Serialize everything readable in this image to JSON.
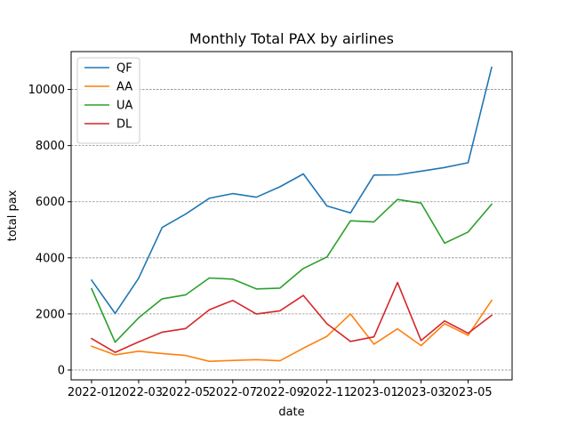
{
  "chart_data": {
    "type": "line",
    "title": "Monthly Total PAX by airlines",
    "xlabel": "date",
    "ylabel": "total pax",
    "x": [
      "2022-01",
      "2022-02",
      "2022-03",
      "2022-04",
      "2022-05",
      "2022-06",
      "2022-07",
      "2022-08",
      "2022-09",
      "2022-10",
      "2022-11",
      "2022-12",
      "2023-01",
      "2023-02",
      "2023-03",
      "2023-04",
      "2023-05",
      "2023-06"
    ],
    "x_ticks": [
      "2022-01",
      "2022-03",
      "2022-05",
      "2022-07",
      "2022-09",
      "2022-11",
      "2023-01",
      "2023-03",
      "2023-05"
    ],
    "y_ticks": [
      0,
      2000,
      4000,
      6000,
      8000,
      10000
    ],
    "ylim": [
      -350,
      11350
    ],
    "grid": "horizontal dashed",
    "legend_position": "top-left",
    "series": [
      {
        "name": "QF",
        "color": "#1f77b4",
        "values": [
          3200,
          2020,
          3270,
          5080,
          5560,
          6120,
          6290,
          6160,
          6530,
          6990,
          5850,
          5600,
          6950,
          6960,
          7090,
          7220,
          7390,
          10790
        ]
      },
      {
        "name": "AA",
        "color": "#ff7f0e",
        "values": [
          850,
          540,
          670,
          590,
          520,
          310,
          340,
          370,
          330,
          780,
          1200,
          2000,
          920,
          1470,
          870,
          1650,
          1240,
          2480
        ]
      },
      {
        "name": "UA",
        "color": "#2ca02c",
        "values": [
          2900,
          990,
          1860,
          2540,
          2680,
          3280,
          3240,
          2890,
          2920,
          3620,
          4030,
          5320,
          5280,
          6080,
          5950,
          4520,
          4920,
          5910
        ]
      },
      {
        "name": "DL",
        "color": "#d62728",
        "values": [
          1120,
          630,
          1000,
          1350,
          1480,
          2150,
          2480,
          2000,
          2110,
          2660,
          1650,
          1020,
          1180,
          3120,
          1050,
          1750,
          1310,
          1950
        ]
      }
    ]
  }
}
